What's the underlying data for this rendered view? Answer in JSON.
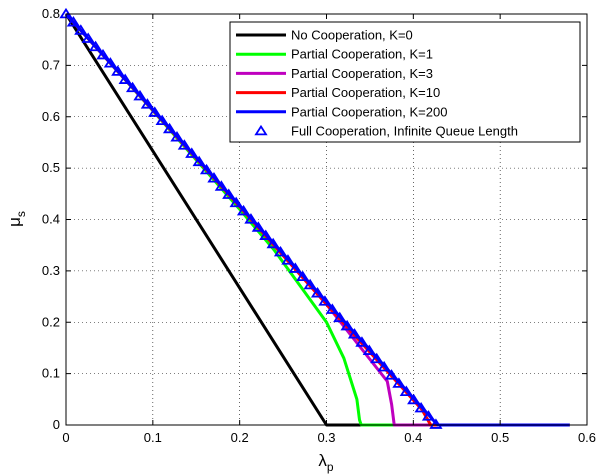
{
  "chart_data": {
    "type": "line",
    "title": "",
    "xlabel": "λ",
    "xlabel_sub": "p",
    "ylabel": "μ",
    "ylabel_sub": "s",
    "xlim": [
      0,
      0.6
    ],
    "ylim": [
      0,
      0.8
    ],
    "xticks": [
      "0",
      "0.1",
      "0.2",
      "0.3",
      "0.4",
      "0.5",
      "0.6"
    ],
    "yticks": [
      "0",
      "0.1",
      "0.2",
      "0.3",
      "0.4",
      "0.5",
      "0.6",
      "0.7",
      "0.8"
    ],
    "grid": "dotted",
    "legend_position": "top-right",
    "series": [
      {
        "name": "No Cooperation, K=0",
        "color": "#000000",
        "style": "line",
        "points": [
          [
            0,
            0.8
          ],
          [
            0.3,
            0
          ],
          [
            0.58,
            0
          ]
        ]
      },
      {
        "name": "Partial Cooperation, K=1",
        "color": "#00ff00",
        "style": "line",
        "points": [
          [
            0,
            0.8
          ],
          [
            0.1,
            0.612
          ],
          [
            0.2,
            0.42
          ],
          [
            0.24,
            0.34
          ],
          [
            0.27,
            0.27
          ],
          [
            0.3,
            0.2
          ],
          [
            0.32,
            0.13
          ],
          [
            0.335,
            0.05
          ],
          [
            0.338,
            0.01
          ],
          [
            0.34,
            0
          ],
          [
            0.58,
            0
          ]
        ]
      },
      {
        "name": "Partial Cooperation, K=3",
        "color": "#bf00bf",
        "style": "line",
        "points": [
          [
            0,
            0.8
          ],
          [
            0.1,
            0.613
          ],
          [
            0.2,
            0.425
          ],
          [
            0.3,
            0.235
          ],
          [
            0.37,
            0.085
          ],
          [
            0.375,
            0.04
          ],
          [
            0.378,
            0
          ],
          [
            0.58,
            0
          ]
        ]
      },
      {
        "name": "Partial Cooperation, K=10",
        "color": "#ff0000",
        "style": "line",
        "points": [
          [
            0,
            0.8
          ],
          [
            0.1,
            0.613
          ],
          [
            0.2,
            0.425
          ],
          [
            0.3,
            0.235
          ],
          [
            0.41,
            0.03
          ],
          [
            0.42,
            0
          ],
          [
            0.58,
            0
          ]
        ]
      },
      {
        "name": "Partial Cooperation, K=200",
        "color": "#0000ff",
        "style": "line",
        "points": [
          [
            0,
            0.8
          ],
          [
            0.1,
            0.614
          ],
          [
            0.2,
            0.427
          ],
          [
            0.3,
            0.24
          ],
          [
            0.42,
            0.015
          ],
          [
            0.428,
            0
          ],
          [
            0.58,
            0
          ]
        ]
      },
      {
        "name": "Full Cooperation, Infinite Queue Length",
        "color": "#0000ff",
        "style": "markers",
        "marker": "triangle",
        "x_start": 0,
        "x_end": 0.426,
        "x_step": 0.00852,
        "y_at_zero": 0.8,
        "slope": -1.876
      }
    ]
  }
}
